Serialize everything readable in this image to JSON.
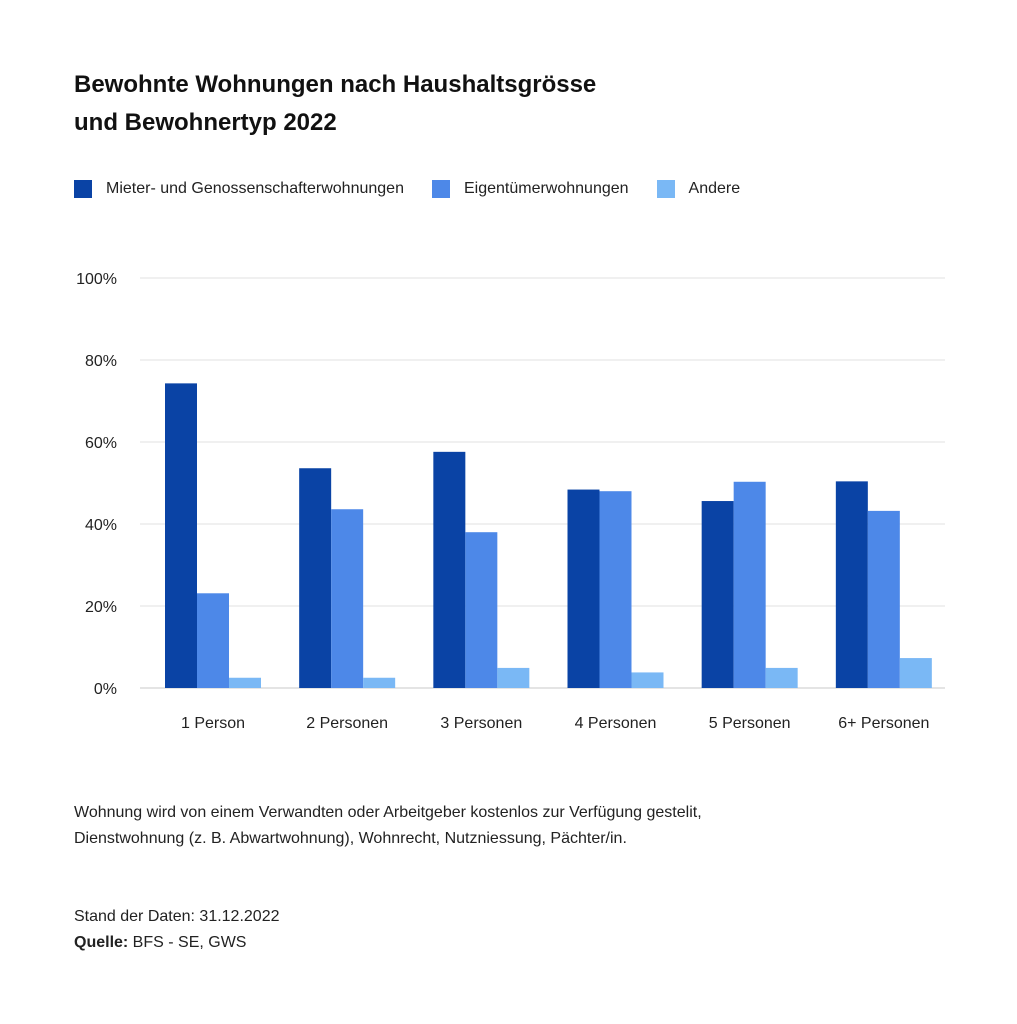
{
  "title": {
    "line1": "Bewohnte Wohnungen nach Haushaltsgrösse",
    "line2": "und Bewohnertyp 2022"
  },
  "colors": {
    "series1": "#0a43a5",
    "series2": "#4d88e8",
    "series3": "#7ab8f5",
    "grid": "#d9d9d9",
    "text": "#222222"
  },
  "chart_data": {
    "type": "bar",
    "categories": [
      "1 Person",
      "2 Personen",
      "3 Personen",
      "4 Personen",
      "5 Personen",
      "6+ Personen"
    ],
    "series": [
      {
        "name": "Mieter- und Genossenschafterwohnungen",
        "values": [
          74.3,
          53.6,
          57.6,
          48.4,
          45.6,
          50.4
        ]
      },
      {
        "name": "Eigentümerwohnungen",
        "values": [
          23.1,
          43.6,
          38.0,
          48.0,
          50.3,
          43.2
        ]
      },
      {
        "name": "Andere",
        "values": [
          2.5,
          2.5,
          4.9,
          3.8,
          4.9,
          7.3
        ]
      }
    ],
    "yticks": [
      "0%",
      "20%",
      "40%",
      "60%",
      "80%",
      "100%"
    ],
    "ylim": [
      0,
      100
    ],
    "grid": true,
    "legend_position": "top-left"
  },
  "note": {
    "line1": "Wohnung wird von einem Verwandten oder Arbeitgeber kostenlos zur Verfügung gestelit,",
    "line2": "Dienstwohnung (z. B. Abwartwohnung), Wohnrecht, Nutzniessung, Pächter/in."
  },
  "meta": {
    "stand": "Stand der Daten: 31.12.2022",
    "source_label": "Quelle:",
    "source_value": " BFS - SE, GWS"
  }
}
